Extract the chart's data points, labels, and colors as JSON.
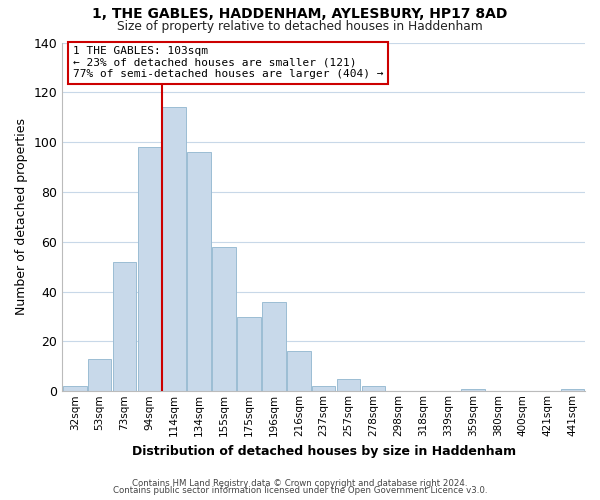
{
  "title": "1, THE GABLES, HADDENHAM, AYLESBURY, HP17 8AD",
  "subtitle": "Size of property relative to detached houses in Haddenham",
  "xlabel": "Distribution of detached houses by size in Haddenham",
  "ylabel": "Number of detached properties",
  "bar_color": "#c8d9ea",
  "bar_edge_color": "#9bbdd4",
  "categories": [
    "32sqm",
    "53sqm",
    "73sqm",
    "94sqm",
    "114sqm",
    "134sqm",
    "155sqm",
    "175sqm",
    "196sqm",
    "216sqm",
    "237sqm",
    "257sqm",
    "278sqm",
    "298sqm",
    "318sqm",
    "339sqm",
    "359sqm",
    "380sqm",
    "400sqm",
    "421sqm",
    "441sqm"
  ],
  "values": [
    2,
    13,
    52,
    98,
    114,
    96,
    58,
    30,
    36,
    16,
    2,
    5,
    2,
    0,
    0,
    0,
    1,
    0,
    0,
    0,
    1
  ],
  "ylim": [
    0,
    140
  ],
  "yticks": [
    0,
    20,
    40,
    60,
    80,
    100,
    120,
    140
  ],
  "vline_color": "#cc0000",
  "vline_position": 3.5,
  "annotation_title": "1 THE GABLES: 103sqm",
  "annotation_line1": "← 23% of detached houses are smaller (121)",
  "annotation_line2": "77% of semi-detached houses are larger (404) →",
  "footer1": "Contains HM Land Registry data © Crown copyright and database right 2024.",
  "footer2": "Contains public sector information licensed under the Open Government Licence v3.0.",
  "background_color": "#ffffff",
  "grid_color": "#c8d8e8"
}
